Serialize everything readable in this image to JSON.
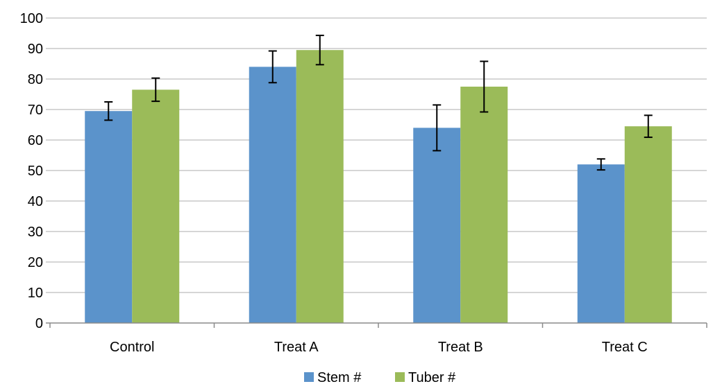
{
  "chart_data": {
    "type": "bar",
    "title": "",
    "xlabel": "",
    "ylabel": "",
    "ylim": [
      0,
      100
    ],
    "yticks": [
      0,
      10,
      20,
      30,
      40,
      50,
      60,
      70,
      80,
      90,
      100
    ],
    "grid": true,
    "legend_position": "bottom",
    "categories": [
      "Control",
      "Treat A",
      "Treat B",
      "Treat C"
    ],
    "series": [
      {
        "name": "Stem #",
        "color": "#5b93cb",
        "values": [
          69.5,
          84,
          64,
          52
        ],
        "error": [
          3,
          5.2,
          7.5,
          1.8
        ]
      },
      {
        "name": "Tuber #",
        "color": "#9bbb59",
        "values": [
          76.5,
          89.5,
          77.5,
          64.5
        ],
        "error": [
          3.8,
          4.8,
          8.3,
          3.6
        ]
      }
    ]
  }
}
